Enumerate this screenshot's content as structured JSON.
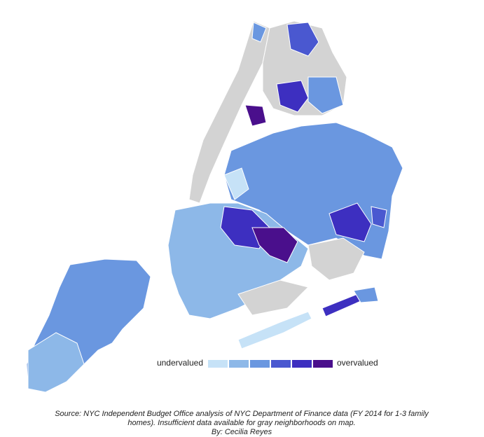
{
  "legend": {
    "low_label": "undervalued",
    "high_label": "overvalued",
    "colors": [
      "#c6e2f7",
      "#8db8e8",
      "#6a97e0",
      "#4a58d0",
      "#3d2fc0",
      "#4a0f8c"
    ]
  },
  "source": {
    "lines": [
      "Source: NYC Independent Budget Office analysis of NYC Department of Finance data (FY 2014 for 1-3 family",
      "homes). Insufficient data available for gray neighborhoods on map.",
      "By: Cecilia Reyes"
    ]
  }
}
